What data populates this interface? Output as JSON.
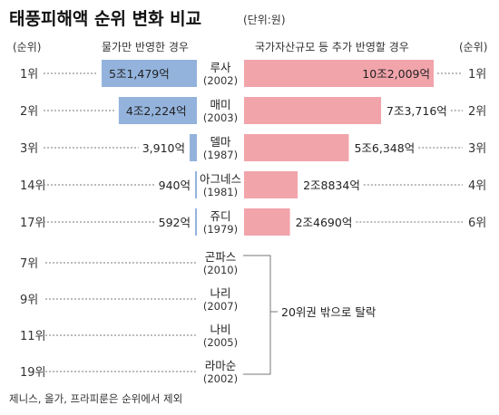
{
  "title": "태풍피해액 순위 변화 비교",
  "unit": "(단위:원)",
  "header_left_rank": "(순위)",
  "header_right_rank": "(순위)",
  "left_series_label": "물가만 반영한 경우",
  "right_series_label": "국가자산규모 등 추가 반영할 경우",
  "dropped_label": "20위권 밖으로 탈락",
  "footnote": "제니스, 올가, 프라피룬은 순위에서 제외",
  "colors": {
    "left_bar": "#93b3dc",
    "right_bar": "#f2a4ab"
  },
  "chart_data": {
    "type": "bar",
    "title": "태풍피해액 순위 변화 비교",
    "unit": "(단위:원)",
    "series": [
      {
        "name": "물가만 반영한 경우",
        "values_eok": [
          51479,
          42224,
          3910,
          940,
          592
        ]
      },
      {
        "name": "국가자산규모 등 추가 반영할 경우",
        "values_eok": [
          102009,
          73716,
          56348,
          28834,
          24690
        ]
      }
    ],
    "typhoons": [
      {
        "name": "루사",
        "year": "(2002)",
        "left_rank": "1위",
        "right_rank": "1위",
        "left_label": "5조1,479억",
        "right_label": "10조2,009억",
        "left_value": 51479,
        "right_value": 102009
      },
      {
        "name": "매미",
        "year": "(2003)",
        "left_rank": "2위",
        "right_rank": "2위",
        "left_label": "4조2,224억",
        "right_label": "7조3,716억",
        "left_value": 42224,
        "right_value": 73716
      },
      {
        "name": "델마",
        "year": "(1987)",
        "left_rank": "3위",
        "right_rank": "3위",
        "left_label": "3,910억",
        "right_label": "5조6,348억",
        "left_value": 3910,
        "right_value": 56348
      },
      {
        "name": "아그네스",
        "year": "(1981)",
        "left_rank": "14위",
        "right_rank": "4위",
        "left_label": "940억",
        "right_label": "2조8834억",
        "left_value": 940,
        "right_value": 28834
      },
      {
        "name": "쥬디",
        "year": "(1979)",
        "left_rank": "17위",
        "right_rank": "6위",
        "left_label": "592억",
        "right_label": "2조4690억",
        "left_value": 592,
        "right_value": 24690
      }
    ],
    "dropped": [
      {
        "name": "곤파스",
        "year": "(2010)",
        "left_rank": "7위"
      },
      {
        "name": "나리",
        "year": "(2007)",
        "left_rank": "9위"
      },
      {
        "name": "나비",
        "year": "(2005)",
        "left_rank": "11위"
      },
      {
        "name": "라마순",
        "year": "(2002)",
        "left_rank": "19위"
      }
    ]
  }
}
